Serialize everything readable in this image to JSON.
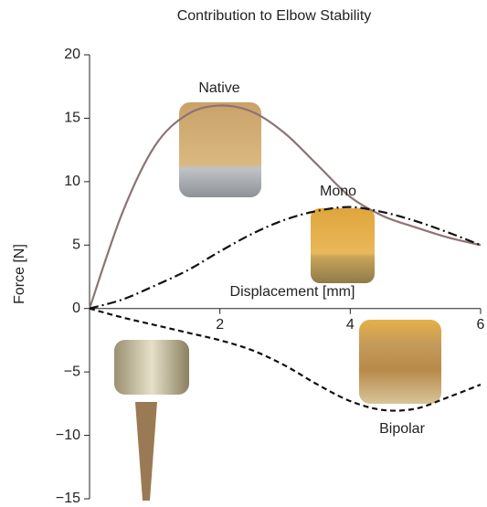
{
  "chart_data": {
    "type": "line",
    "title": "Contribution to Elbow Stability",
    "x_label": "Displacement [mm]",
    "y_label": "Force [N]",
    "x": [
      0,
      0.5,
      1,
      1.5,
      2,
      2.5,
      3,
      3.5,
      4,
      4.5,
      5,
      5.5,
      6
    ],
    "series": [
      {
        "name": "Native",
        "color": "#8c7474",
        "style": "solid",
        "values": [
          0,
          7.5,
          12.8,
          15.3,
          16,
          15.5,
          13.8,
          11.3,
          8.8,
          7.3,
          6.4,
          5.6,
          5
        ]
      },
      {
        "name": "Mono",
        "color": "#111111",
        "style": "dashdot",
        "values": [
          0,
          0.7,
          1.8,
          3,
          4.5,
          5.9,
          7,
          7.7,
          8,
          7.6,
          6.9,
          6,
          5
        ]
      },
      {
        "name": "Bipolar",
        "color": "#111111",
        "style": "dashed",
        "values": [
          0,
          -0.7,
          -1.3,
          -1.9,
          -2.5,
          -3.3,
          -4.5,
          -6,
          -7.3,
          -8,
          -7.9,
          -7,
          -6
        ]
      }
    ],
    "xlim": [
      0,
      6
    ],
    "xticks": [
      2,
      4,
      6
    ],
    "ylim": [
      -15,
      20
    ],
    "yticks": [
      {
        "value": -15,
        "label": "−15"
      },
      {
        "value": -10,
        "label": "−10"
      },
      {
        "value": -5,
        "label": "−5"
      },
      0,
      5,
      10,
      15,
      20
    ]
  }
}
